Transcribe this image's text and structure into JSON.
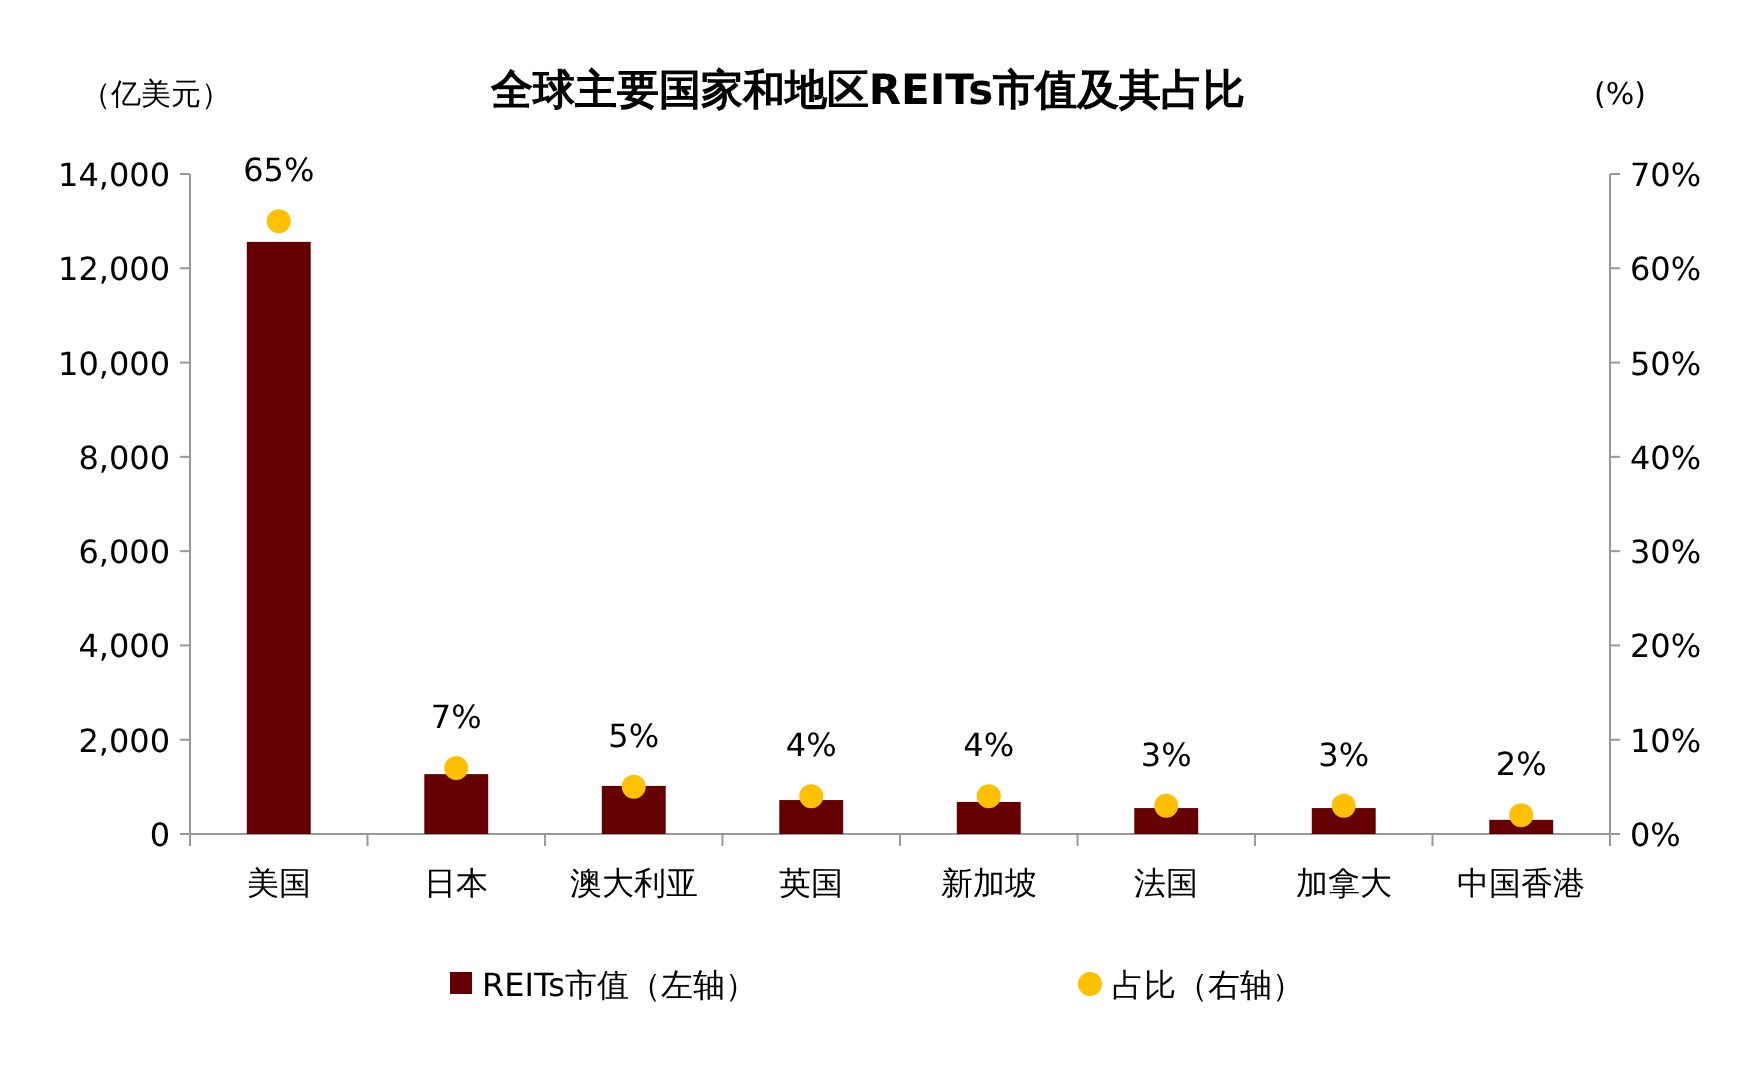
{
  "chart_data": {
    "type": "bar",
    "title": "全球主要国家和地区REITs市值及其占比",
    "ylabel": "（亿美元）",
    "y2label": "(%)",
    "categories": [
      "美国",
      "日本",
      "澳大利亚",
      "英国",
      "新加坡",
      "法国",
      "加拿大",
      "中国香港"
    ],
    "series": [
      {
        "name": "REITs市值（左轴）",
        "color": "#640000",
        "values": [
          12560,
          1270,
          1020,
          720,
          680,
          550,
          550,
          300
        ]
      },
      {
        "name": "占比（右轴）",
        "type": "scatter",
        "axis": "y2",
        "color": "#ffc000",
        "marker": "circle",
        "values": [
          65,
          7,
          5,
          4,
          4,
          3,
          3,
          2
        ],
        "value_labels": [
          "65%",
          "7%",
          "5%",
          "4%",
          "4%",
          "3%",
          "3%",
          "2%"
        ]
      }
    ],
    "ylim": [
      0,
      14000
    ],
    "yticks": [
      {
        "value": 0,
        "label": "0"
      },
      {
        "value": 2000,
        "label": "2,000"
      },
      {
        "value": 4000,
        "label": "4,000"
      },
      {
        "value": 6000,
        "label": "6,000"
      },
      {
        "value": 8000,
        "label": "8,000"
      },
      {
        "value": 10000,
        "label": "10,000"
      },
      {
        "value": 12000,
        "label": "12,000"
      },
      {
        "value": 14000,
        "label": "14,000"
      }
    ],
    "y2lim": [
      0,
      70
    ],
    "y2ticks": [
      {
        "value": 0,
        "label": "0%"
      },
      {
        "value": 10,
        "label": "10%"
      },
      {
        "value": 20,
        "label": "20%"
      },
      {
        "value": 30,
        "label": "30%"
      },
      {
        "value": 40,
        "label": "40%"
      },
      {
        "value": 50,
        "label": "50%"
      },
      {
        "value": 60,
        "label": "60%"
      },
      {
        "value": 70,
        "label": "70%"
      }
    ],
    "grid": false,
    "legend": "bottom"
  }
}
